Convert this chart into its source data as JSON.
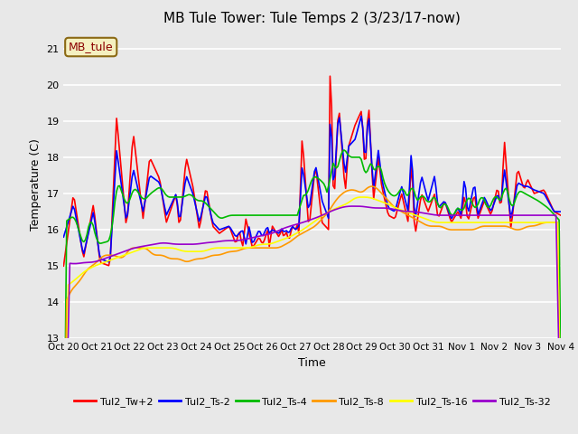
{
  "title": "MB Tule Tower: Tule Temps 2 (3/23/17-now)",
  "xlabel": "Time",
  "ylabel": "Temperature (C)",
  "ylim": [
    13.0,
    21.5
  ],
  "yticks": [
    13.0,
    14.0,
    15.0,
    16.0,
    17.0,
    18.0,
    19.0,
    20.0,
    21.0
  ],
  "xtick_labels": [
    "Oct 20",
    "Oct 21",
    "Oct 22",
    "Oct 23",
    "Oct 24",
    "Oct 25",
    "Oct 26",
    "Oct 27",
    "Oct 28",
    "Oct 29",
    "Oct 30",
    "Oct 31",
    "Nov 1",
    "Nov 2",
    "Nov 3",
    "Nov 4"
  ],
  "legend_label": "MB_tule",
  "series_colors": {
    "Tul2_Tw+2": "#ff0000",
    "Tul2_Ts-2": "#0000ff",
    "Tul2_Ts-4": "#00bb00",
    "Tul2_Ts-8": "#ff9900",
    "Tul2_Ts-16": "#ffff00",
    "Tul2_Ts-32": "#9900cc"
  },
  "plot_bg_color": "#e8e8e8",
  "fig_bg_color": "#e8e8e8",
  "grid_color": "#ffffff",
  "title_fontsize": 11,
  "tick_fontsize": 8,
  "label_fontsize": 9,
  "linewidth": 1.2,
  "legend_fontsize": 8
}
